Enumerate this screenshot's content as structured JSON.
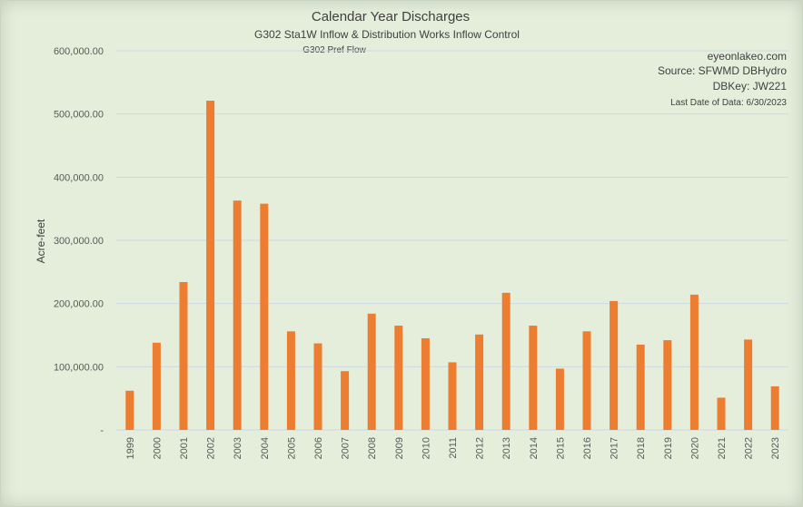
{
  "chart_data": {
    "type": "bar",
    "title": "Calendar Year Discharges",
    "subtitle": "G302 Sta1W Inflow & Distribution Works Inflow Control",
    "series_label": "G302 Pref Flow",
    "ylabel": "Acre-feet",
    "xlabel": "",
    "ylim": [
      0,
      600000
    ],
    "yticks": [
      {
        "value": 0,
        "label": "-"
      },
      {
        "value": 100000,
        "label": "100,000.00"
      },
      {
        "value": 200000,
        "label": "200,000.00"
      },
      {
        "value": 300000,
        "label": "300,000.00"
      },
      {
        "value": 400000,
        "label": "400,000.00"
      },
      {
        "value": 500000,
        "label": "500,000.00"
      },
      {
        "value": 600000,
        "label": "600,000.00"
      }
    ],
    "grid": true,
    "bar_color": "#ed7d31",
    "categories": [
      "1999",
      "2000",
      "2001",
      "2002",
      "2003",
      "2004",
      "2005",
      "2006",
      "2007",
      "2008",
      "2009",
      "2010",
      "2011",
      "2012",
      "2013",
      "2014",
      "2015",
      "2016",
      "2017",
      "2018",
      "2019",
      "2020",
      "2021",
      "2022",
      "2023"
    ],
    "values": [
      62000,
      138000,
      234000,
      521000,
      363000,
      358000,
      156000,
      137000,
      93000,
      184000,
      165000,
      145000,
      107000,
      151000,
      217000,
      165000,
      97000,
      156000,
      204000,
      135000,
      142000,
      214000,
      51000,
      143000,
      69000
    ]
  },
  "info": {
    "site": "eyeonlakeo.com",
    "source": "Source: SFWMD DBHydro",
    "dbkey": "DBKey: JW221",
    "last_date": "Last Date of Data: 6/30/2023"
  }
}
